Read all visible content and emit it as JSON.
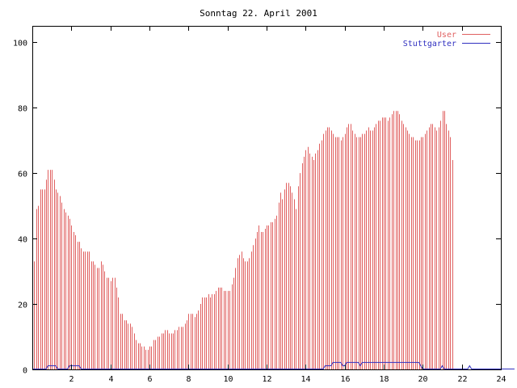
{
  "chart_data": {
    "type": "bar",
    "title": "Sonntag 22. April 2001",
    "xlabel": "",
    "ylabel": "",
    "xlim": [
      0,
      24
    ],
    "ylim": [
      0,
      105
    ],
    "x_ticks": [
      2,
      4,
      6,
      8,
      10,
      12,
      14,
      16,
      18,
      20,
      22,
      24
    ],
    "y_ticks": [
      0,
      20,
      40,
      60,
      80,
      100
    ],
    "legend_position": "top-right",
    "grid": false,
    "sample_interval_hours": 0.1,
    "series": [
      {
        "name": "User",
        "style": "impulses",
        "color": "#e06060",
        "values": [
          31,
          33,
          49,
          50,
          55,
          55,
          55,
          58,
          61,
          61,
          61,
          58,
          55,
          54,
          53,
          51,
          49,
          48,
          47,
          46,
          44,
          42,
          41,
          39,
          39,
          37,
          36,
          36,
          36,
          36,
          33,
          33,
          32,
          31,
          31,
          33,
          32,
          30,
          28,
          28,
          27,
          28,
          28,
          25,
          22,
          17,
          17,
          15,
          15,
          14,
          14,
          13,
          11,
          9,
          8,
          8,
          7,
          7,
          6,
          6,
          7,
          7,
          9,
          9,
          10,
          10,
          11,
          11,
          12,
          12,
          11,
          11,
          11,
          12,
          12,
          13,
          13,
          13,
          14,
          15,
          17,
          17,
          17,
          16,
          17,
          18,
          20,
          22,
          22,
          22,
          23,
          22,
          23,
          23,
          24,
          25,
          25,
          25,
          24,
          24,
          24,
          24,
          26,
          28,
          31,
          34,
          35,
          36,
          34,
          33,
          33,
          34,
          36,
          38,
          40,
          42,
          44,
          42,
          42,
          43,
          44,
          44,
          45,
          45,
          46,
          47,
          51,
          54,
          52,
          55,
          57,
          57,
          56,
          54,
          52,
          49,
          56,
          60,
          63,
          65,
          67,
          68,
          66,
          65,
          64,
          66,
          67,
          69,
          70,
          72,
          73,
          74,
          74,
          73,
          72,
          71,
          71,
          71,
          70,
          71,
          72,
          74,
          75,
          75,
          73,
          72,
          71,
          71,
          71,
          72,
          72,
          73,
          74,
          73,
          73,
          74,
          75,
          76,
          76,
          77,
          77,
          77,
          76,
          77,
          78,
          79,
          79,
          79,
          78,
          76,
          75,
          74,
          73,
          72,
          71,
          71,
          70,
          70,
          70,
          71,
          71,
          72,
          73,
          74,
          75,
          75,
          74,
          73,
          74,
          76,
          79,
          79,
          75,
          73,
          71,
          64
        ]
      },
      {
        "name": "Stuttgarter",
        "style": "line",
        "color": "#3030c0",
        "values": [
          0,
          0,
          0,
          0,
          0,
          0,
          0,
          0,
          1,
          1,
          1,
          1,
          1,
          0,
          0,
          0,
          0,
          0,
          0,
          1,
          1,
          1,
          1,
          1,
          1,
          0,
          0,
          0,
          0,
          0,
          0,
          0,
          0,
          0,
          0,
          0,
          0,
          0,
          0,
          0,
          0,
          0,
          0,
          0,
          0,
          0,
          0,
          0,
          0,
          0,
          0,
          0,
          0,
          0,
          0,
          0,
          0,
          0,
          0,
          0,
          0,
          0,
          0,
          0,
          0,
          0,
          0,
          0,
          0,
          0,
          0,
          0,
          0,
          0,
          0,
          0,
          0,
          0,
          0,
          0,
          0,
          0,
          0,
          0,
          0,
          0,
          0,
          0,
          0,
          0,
          0,
          0,
          0,
          0,
          0,
          0,
          0,
          0,
          0,
          0,
          0,
          0,
          0,
          0,
          0,
          0,
          0,
          0,
          0,
          0,
          0,
          0,
          0,
          0,
          0,
          0,
          0,
          0,
          0,
          0,
          0,
          0,
          0,
          0,
          0,
          0,
          0,
          0,
          0,
          0,
          0,
          0,
          0,
          0,
          0,
          0,
          0,
          0,
          0,
          0,
          0,
          0,
          0,
          0,
          0,
          0,
          0,
          0,
          0,
          0,
          1,
          1,
          1,
          1,
          2,
          2,
          2,
          2,
          2,
          1,
          1,
          2,
          2,
          2,
          2,
          2,
          2,
          2,
          1,
          2,
          2,
          2,
          2,
          2,
          2,
          2,
          2,
          2,
          2,
          2,
          2,
          2,
          2,
          2,
          2,
          2,
          2,
          2,
          2,
          2,
          2,
          2,
          2,
          2,
          2,
          2,
          2,
          2,
          2,
          1,
          0,
          0,
          0,
          0,
          0,
          0,
          0,
          0,
          0,
          0,
          1,
          0,
          0,
          0,
          0,
          0,
          0,
          0,
          0,
          0,
          0,
          0,
          0,
          0,
          1,
          0,
          0,
          0,
          0,
          0,
          0,
          0,
          0,
          0,
          0,
          0,
          0,
          0,
          0,
          0,
          0,
          0,
          0,
          0,
          0,
          0,
          0,
          0
        ]
      }
    ]
  }
}
